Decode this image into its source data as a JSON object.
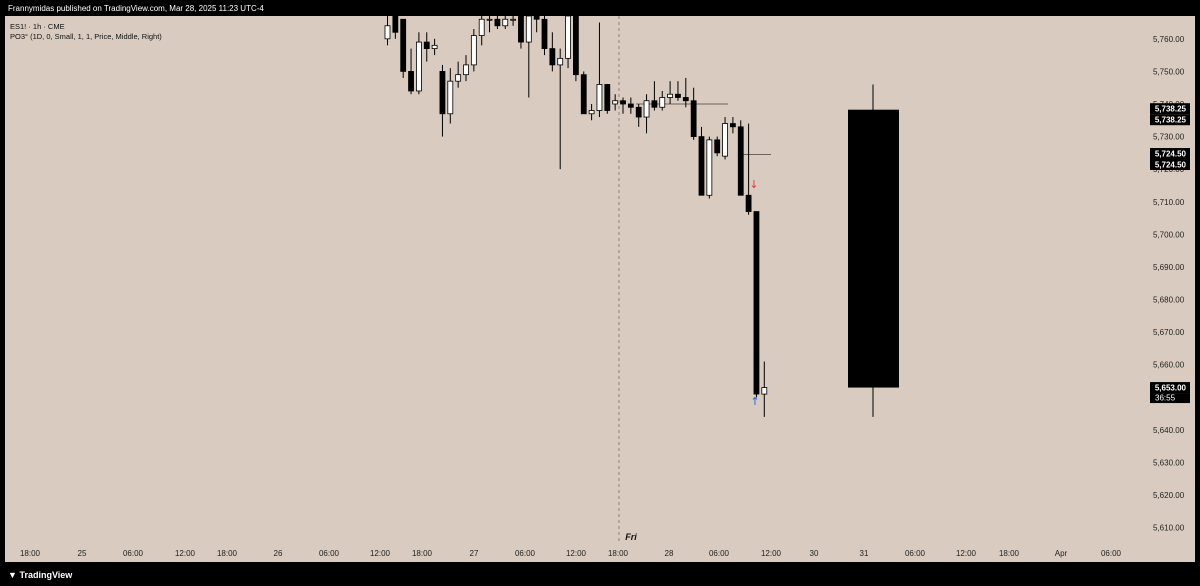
{
  "header": {
    "published": "Frannymidas published on TradingView.com, Mar 28, 2025 11:23 UTC-4",
    "symbol": "ES1! · 1h · CME",
    "indicator": "PO3° (1D, 0, Small, 1, 1, Price, Middle, Right)"
  },
  "footer": {
    "logo_text": "TradingView"
  },
  "colors": {
    "background": "#d9cbbf",
    "frame": "#000000",
    "up_fill": "#ffffff",
    "down_fill": "#000000",
    "arrow_down": "#e53935",
    "arrow_up": "#1e66e0"
  },
  "day_label": "Fri",
  "price_badges": [
    {
      "label": "5,738.25",
      "y": 5738.25
    },
    {
      "label": "5,724.50",
      "y": 5724.5
    },
    {
      "label": "5,653.00",
      "sub": "36:55",
      "y": 5653.0
    }
  ],
  "chart_data": {
    "type": "candlestick",
    "title": "",
    "ylim": [
      5605,
      5767
    ],
    "y_ticks": [
      "5,610.00",
      "5,620.00",
      "5,630.00",
      "5,640.00",
      "5,650.00",
      "5,660.00",
      "5,670.00",
      "5,680.00",
      "5,690.00",
      "5,700.00",
      "5,710.00",
      "5,720.00",
      "5,730.00",
      "5,740.00",
      "5,750.00",
      "5,760.00"
    ],
    "y_tick_values": [
      5610,
      5620,
      5630,
      5640,
      5650,
      5660,
      5670,
      5680,
      5690,
      5700,
      5710,
      5720,
      5730,
      5740,
      5750,
      5760
    ],
    "x_ticks": [
      "18:00",
      "25",
      "06:00",
      "12:00",
      "18:00",
      "26",
      "06:00",
      "12:00",
      "18:00",
      "27",
      "06:00",
      "12:00",
      "18:00",
      "28",
      "06:00",
      "12:00",
      "30",
      "31",
      "06:00",
      "12:00",
      "18:00",
      "Apr",
      "06:00"
    ],
    "candles": [
      {
        "o": 5760,
        "h": 5767,
        "l": 5758,
        "c": 5764
      },
      {
        "o": 5767,
        "h": 5767,
        "l": 5760,
        "c": 5762
      },
      {
        "o": 5766,
        "h": 5766,
        "l": 5748,
        "c": 5750
      },
      {
        "o": 5750,
        "h": 5757,
        "l": 5743,
        "c": 5744
      },
      {
        "o": 5744,
        "h": 5762,
        "l": 5743,
        "c": 5759
      },
      {
        "o": 5759,
        "h": 5762,
        "l": 5753,
        "c": 5757
      },
      {
        "o": 5757,
        "h": 5760,
        "l": 5755,
        "c": 5758
      },
      {
        "o": 5750,
        "h": 5752,
        "l": 5730,
        "c": 5737
      },
      {
        "o": 5737,
        "h": 5751,
        "l": 5734,
        "c": 5747
      },
      {
        "o": 5747,
        "h": 5753,
        "l": 5745,
        "c": 5749
      },
      {
        "o": 5749,
        "h": 5755,
        "l": 5747,
        "c": 5752
      },
      {
        "o": 5752,
        "h": 5763,
        "l": 5750,
        "c": 5761
      },
      {
        "o": 5761,
        "h": 5767,
        "l": 5758,
        "c": 5766
      },
      {
        "o": 5766,
        "h": 5767,
        "l": 5762,
        "c": 5766
      },
      {
        "o": 5766,
        "h": 5767,
        "l": 5763,
        "c": 5764
      },
      {
        "o": 5764,
        "h": 5767,
        "l": 5763,
        "c": 5766
      },
      {
        "o": 5766,
        "h": 5767,
        "l": 5764,
        "c": 5766
      },
      {
        "o": 5767,
        "h": 5767,
        "l": 5757,
        "c": 5759
      },
      {
        "o": 5759,
        "h": 5767,
        "l": 5742,
        "c": 5767
      },
      {
        "o": 5767,
        "h": 5767,
        "l": 5762,
        "c": 5766
      },
      {
        "o": 5766,
        "h": 5767,
        "l": 5755,
        "c": 5757
      },
      {
        "o": 5757,
        "h": 5762,
        "l": 5750,
        "c": 5752
      },
      {
        "o": 5752,
        "h": 5757,
        "l": 5720,
        "c": 5754
      },
      {
        "o": 5754,
        "h": 5767,
        "l": 5751,
        "c": 5767
      },
      {
        "o": 5767,
        "h": 5767,
        "l": 5747,
        "c": 5749
      },
      {
        "o": 5749,
        "h": 5750,
        "l": 5737,
        "c": 5737
      },
      {
        "o": 5737,
        "h": 5740,
        "l": 5735,
        "c": 5738
      },
      {
        "o": 5738,
        "h": 5765,
        "l": 5736,
        "c": 5746
      },
      {
        "o": 5746,
        "h": 5746,
        "l": 5737,
        "c": 5738
      },
      {
        "o": 5740,
        "h": 5743,
        "l": 5738,
        "c": 5741
      },
      {
        "o": 5741,
        "h": 5742,
        "l": 5737,
        "c": 5740
      },
      {
        "o": 5740,
        "h": 5742,
        "l": 5737,
        "c": 5739
      },
      {
        "o": 5739,
        "h": 5740,
        "l": 5733,
        "c": 5736
      },
      {
        "o": 5736,
        "h": 5743,
        "l": 5731,
        "c": 5741
      },
      {
        "o": 5741,
        "h": 5747,
        "l": 5738,
        "c": 5739
      },
      {
        "o": 5739,
        "h": 5744,
        "l": 5738,
        "c": 5742
      },
      {
        "o": 5742,
        "h": 5747,
        "l": 5740,
        "c": 5743
      },
      {
        "o": 5743,
        "h": 5747,
        "l": 5741,
        "c": 5742
      },
      {
        "o": 5742,
        "h": 5748,
        "l": 5739,
        "c": 5741
      },
      {
        "o": 5741,
        "h": 5745,
        "l": 5729,
        "c": 5730
      },
      {
        "o": 5730,
        "h": 5733,
        "l": 5712,
        "c": 5712
      },
      {
        "o": 5712,
        "h": 5730,
        "l": 5711,
        "c": 5729
      },
      {
        "o": 5729,
        "h": 5730,
        "l": 5724,
        "c": 5725
      },
      {
        "o": 5724,
        "h": 5736,
        "l": 5723,
        "c": 5734
      },
      {
        "o": 5734,
        "h": 5736,
        "l": 5731,
        "c": 5733
      },
      {
        "o": 5733,
        "h": 5735,
        "l": 5712,
        "c": 5712
      },
      {
        "o": 5712,
        "h": 5734,
        "l": 5706,
        "c": 5707
      },
      {
        "o": 5707,
        "h": 5707,
        "l": 5650,
        "c": 5651
      },
      {
        "o": 5651,
        "h": 5661,
        "l": 5644,
        "c": 5653
      }
    ],
    "po3_candle": {
      "o": 5738.25,
      "h": 5746,
      "l": 5644,
      "c": 5653
    },
    "level_lines": [
      5740,
      5724.5
    ]
  }
}
